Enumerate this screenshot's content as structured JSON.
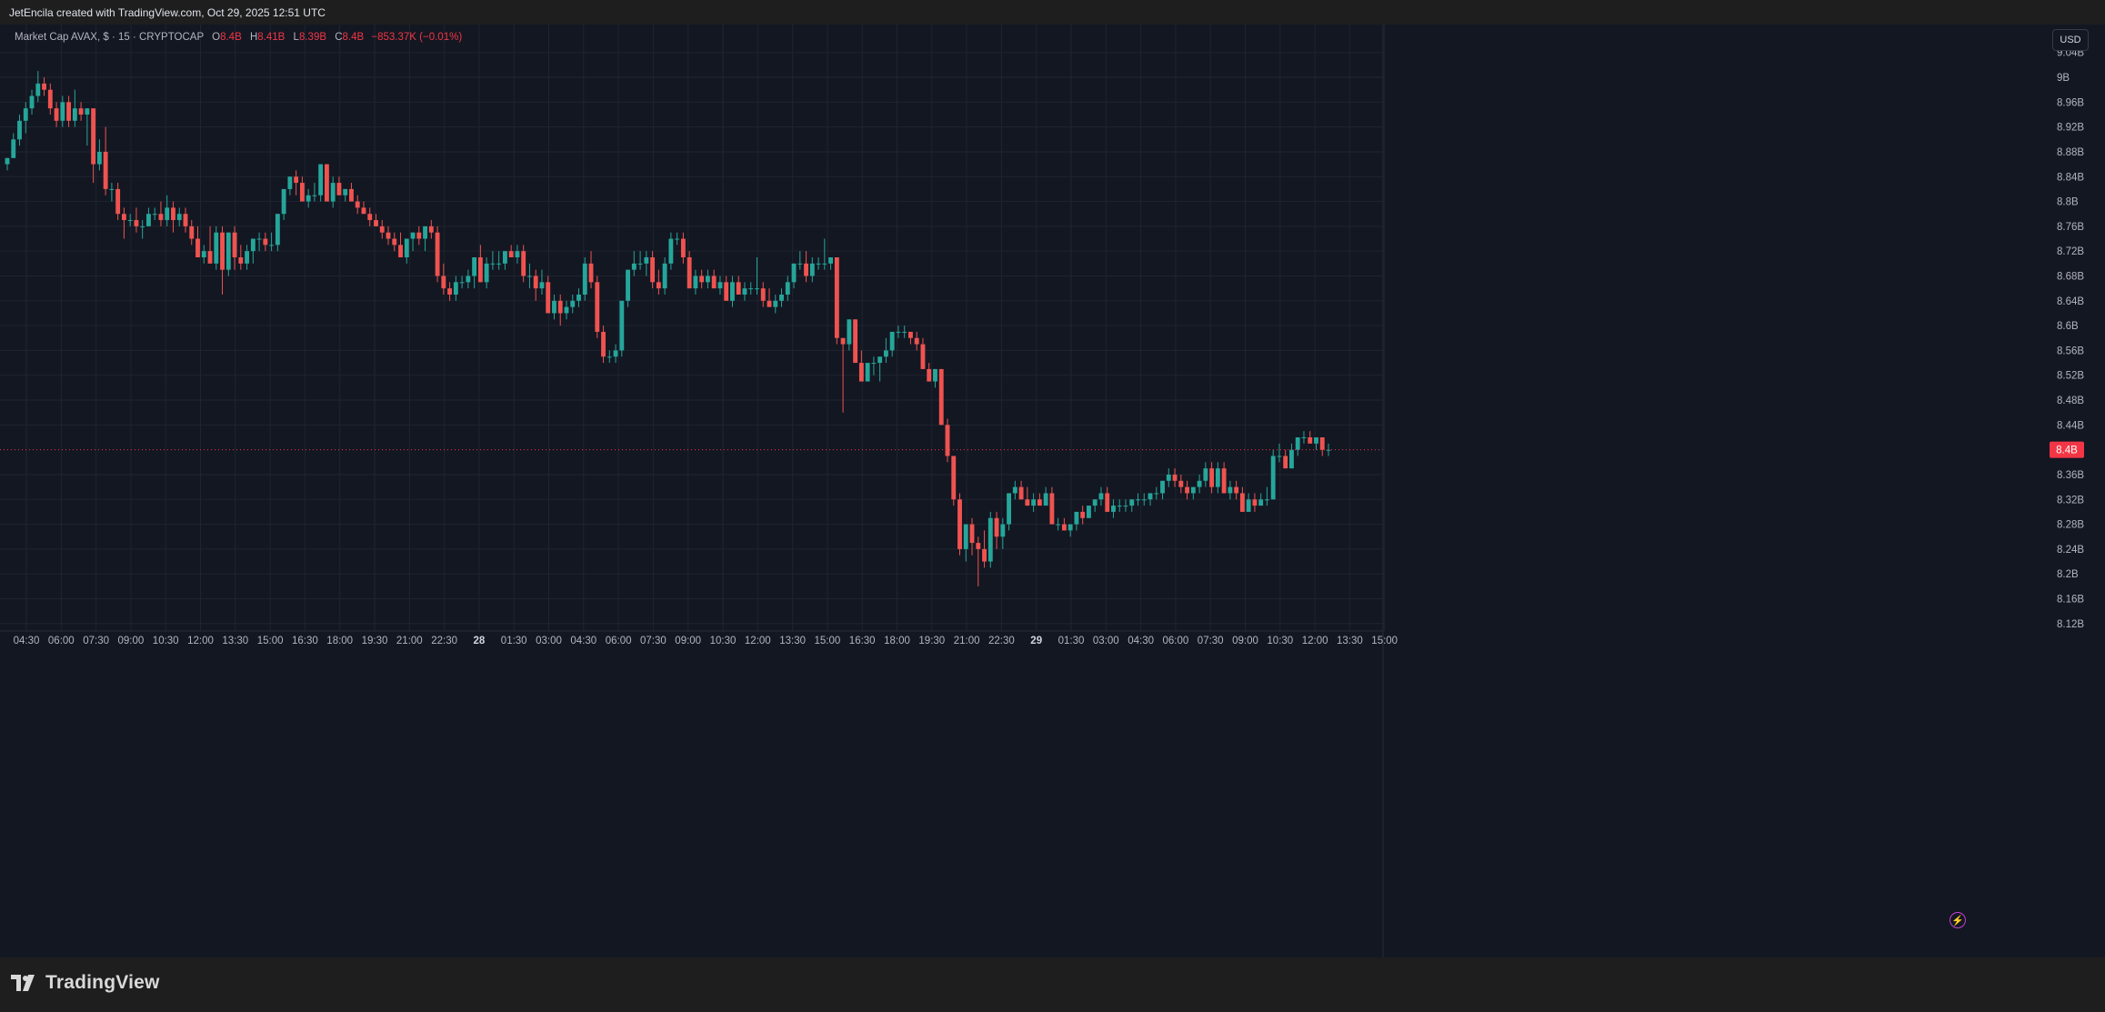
{
  "header": {
    "attribution": "JetEncila created with TradingView.com, Oct 29, 2025 12:51 UTC"
  },
  "legend": {
    "title": "Market Cap AVAX, $ · 15 · CRYPTOCAP",
    "o_label": "O",
    "o_value": "8.4B",
    "h_label": "H",
    "h_value": "8.41B",
    "l_label": "L",
    "l_value": "8.39B",
    "c_label": "C",
    "c_value": "8.4B",
    "change": "−853.37K (−0.01%)"
  },
  "currency_button": "USD",
  "brand": {
    "name": "TradingView"
  },
  "colors": {
    "up": "#26a69a",
    "down": "#ef5350",
    "background": "#131722",
    "grid": "#1f2430",
    "price_line": "#f23645"
  },
  "icons": [
    "tradingview-logo-icon",
    "lightning-icon"
  ],
  "chart_data": {
    "type": "candlestick",
    "symbol": "Market Cap AVAX",
    "interval": "15",
    "y_tick_labels": [
      "9.04B",
      "9B",
      "8.96B",
      "8.92B",
      "8.88B",
      "8.84B",
      "8.8B",
      "8.76B",
      "8.72B",
      "8.68B",
      "8.64B",
      "8.6B",
      "8.56B",
      "8.52B",
      "8.48B",
      "8.44B",
      "8.36B",
      "8.32B",
      "8.28B",
      "8.24B",
      "8.2B",
      "8.16B",
      "8.12B"
    ],
    "y_tick_values": [
      9.04,
      9.0,
      8.96,
      8.92,
      8.88,
      8.84,
      8.8,
      8.76,
      8.72,
      8.68,
      8.64,
      8.6,
      8.56,
      8.52,
      8.48,
      8.44,
      8.36,
      8.32,
      8.28,
      8.24,
      8.2,
      8.16,
      8.12
    ],
    "ylim": [
      8.108,
      9.085
    ],
    "x_tick_labels": [
      "04:30",
      "06:00",
      "07:30",
      "09:00",
      "10:30",
      "12:00",
      "13:30",
      "15:00",
      "16:30",
      "18:00",
      "19:30",
      "21:00",
      "22:30",
      "28",
      "01:30",
      "03:00",
      "04:30",
      "06:00",
      "07:30",
      "09:00",
      "10:30",
      "12:00",
      "13:30",
      "15:00",
      "16:30",
      "18:00",
      "19:30",
      "21:00",
      "22:30",
      "29",
      "01:30",
      "03:00",
      "04:30",
      "06:00",
      "07:30",
      "09:00",
      "10:30",
      "12:00",
      "13:30",
      "15:00"
    ],
    "current_price": 8.4,
    "current_price_label": "8.4B",
    "ohlc": [
      [
        8.86,
        8.87,
        8.85,
        8.87
      ],
      [
        8.87,
        8.91,
        8.87,
        8.9
      ],
      [
        8.9,
        8.94,
        8.89,
        8.93
      ],
      [
        8.93,
        8.96,
        8.91,
        8.95
      ],
      [
        8.95,
        8.98,
        8.94,
        8.97
      ],
      [
        8.97,
        9.01,
        8.96,
        8.99
      ],
      [
        8.99,
        9.0,
        8.97,
        8.98
      ],
      [
        8.98,
        8.99,
        8.94,
        8.95
      ],
      [
        8.95,
        8.96,
        8.92,
        8.93
      ],
      [
        8.93,
        8.97,
        8.92,
        8.96
      ],
      [
        8.96,
        8.97,
        8.92,
        8.93
      ],
      [
        8.93,
        8.98,
        8.92,
        8.95
      ],
      [
        8.95,
        8.96,
        8.93,
        8.94
      ],
      [
        8.94,
        8.95,
        8.89,
        8.95
      ],
      [
        8.95,
        8.95,
        8.83,
        8.86
      ],
      [
        8.86,
        8.9,
        8.85,
        8.88
      ],
      [
        8.88,
        8.92,
        8.81,
        8.82
      ],
      [
        8.82,
        8.83,
        8.8,
        8.82
      ],
      [
        8.82,
        8.83,
        8.77,
        8.78
      ],
      [
        8.78,
        8.79,
        8.74,
        8.77
      ],
      [
        8.77,
        8.78,
        8.76,
        8.77
      ],
      [
        8.77,
        8.79,
        8.75,
        8.76
      ],
      [
        8.76,
        8.77,
        8.74,
        8.76
      ],
      [
        8.76,
        8.79,
        8.76,
        8.78
      ],
      [
        8.78,
        8.79,
        8.77,
        8.78
      ],
      [
        8.78,
        8.8,
        8.76,
        8.77
      ],
      [
        8.77,
        8.81,
        8.76,
        8.79
      ],
      [
        8.79,
        8.8,
        8.75,
        8.77
      ],
      [
        8.77,
        8.79,
        8.76,
        8.78
      ],
      [
        8.78,
        8.79,
        8.75,
        8.76
      ],
      [
        8.76,
        8.77,
        8.73,
        8.74
      ],
      [
        8.74,
        8.76,
        8.71,
        8.71
      ],
      [
        8.71,
        8.73,
        8.7,
        8.72
      ],
      [
        8.72,
        8.76,
        8.7,
        8.7
      ],
      [
        8.7,
        8.76,
        8.69,
        8.75
      ],
      [
        8.75,
        8.76,
        8.65,
        8.69
      ],
      [
        8.69,
        8.75,
        8.68,
        8.75
      ],
      [
        8.75,
        8.76,
        8.69,
        8.71
      ],
      [
        8.71,
        8.73,
        8.69,
        8.7
      ],
      [
        8.7,
        8.73,
        8.69,
        8.72
      ],
      [
        8.72,
        8.74,
        8.7,
        8.74
      ],
      [
        8.74,
        8.75,
        8.72,
        8.74
      ],
      [
        8.74,
        8.75,
        8.72,
        8.73
      ],
      [
        8.73,
        8.75,
        8.72,
        8.73
      ],
      [
        8.73,
        8.78,
        8.72,
        8.78
      ],
      [
        8.78,
        8.82,
        8.77,
        8.82
      ],
      [
        8.82,
        8.84,
        8.81,
        8.84
      ],
      [
        8.84,
        8.85,
        8.81,
        8.83
      ],
      [
        8.83,
        8.84,
        8.8,
        8.8
      ],
      [
        8.8,
        8.82,
        8.79,
        8.81
      ],
      [
        8.81,
        8.83,
        8.8,
        8.81
      ],
      [
        8.81,
        8.86,
        8.8,
        8.86
      ],
      [
        8.86,
        8.86,
        8.8,
        8.8
      ],
      [
        8.8,
        8.84,
        8.79,
        8.83
      ],
      [
        8.83,
        8.84,
        8.81,
        8.81
      ],
      [
        8.81,
        8.82,
        8.8,
        8.82
      ],
      [
        8.82,
        8.83,
        8.8,
        8.8
      ],
      [
        8.8,
        8.81,
        8.78,
        8.79
      ],
      [
        8.79,
        8.8,
        8.78,
        8.78
      ],
      [
        8.78,
        8.79,
        8.76,
        8.77
      ],
      [
        8.77,
        8.78,
        8.76,
        8.76
      ],
      [
        8.76,
        8.77,
        8.74,
        8.75
      ],
      [
        8.75,
        8.76,
        8.73,
        8.74
      ],
      [
        8.74,
        8.75,
        8.72,
        8.73
      ],
      [
        8.73,
        8.75,
        8.71,
        8.71
      ],
      [
        8.71,
        8.74,
        8.7,
        8.74
      ],
      [
        8.74,
        8.75,
        8.72,
        8.75
      ],
      [
        8.75,
        8.76,
        8.73,
        8.74
      ],
      [
        8.74,
        8.76,
        8.72,
        8.76
      ],
      [
        8.76,
        8.77,
        8.74,
        8.75
      ],
      [
        8.75,
        8.76,
        8.67,
        8.68
      ],
      [
        8.68,
        8.7,
        8.65,
        8.66
      ],
      [
        8.66,
        8.67,
        8.64,
        8.65
      ],
      [
        8.65,
        8.68,
        8.64,
        8.67
      ],
      [
        8.67,
        8.68,
        8.66,
        8.67
      ],
      [
        8.67,
        8.69,
        8.66,
        8.68
      ],
      [
        8.68,
        8.71,
        8.66,
        8.71
      ],
      [
        8.71,
        8.73,
        8.67,
        8.67
      ],
      [
        8.67,
        8.71,
        8.66,
        8.7
      ],
      [
        8.7,
        8.72,
        8.69,
        8.7
      ],
      [
        8.7,
        8.72,
        8.69,
        8.7
      ],
      [
        8.7,
        8.72,
        8.69,
        8.72
      ],
      [
        8.72,
        8.73,
        8.71,
        8.71
      ],
      [
        8.71,
        8.73,
        8.7,
        8.72
      ],
      [
        8.72,
        8.73,
        8.67,
        8.68
      ],
      [
        8.68,
        8.7,
        8.66,
        8.68
      ],
      [
        8.68,
        8.69,
        8.64,
        8.66
      ],
      [
        8.66,
        8.69,
        8.65,
        8.67
      ],
      [
        8.67,
        8.68,
        8.62,
        8.62
      ],
      [
        8.62,
        8.65,
        8.61,
        8.64
      ],
      [
        8.64,
        8.65,
        8.6,
        8.62
      ],
      [
        8.62,
        8.64,
        8.61,
        8.63
      ],
      [
        8.63,
        8.65,
        8.62,
        8.64
      ],
      [
        8.64,
        8.66,
        8.63,
        8.65
      ],
      [
        8.65,
        8.71,
        8.64,
        8.7
      ],
      [
        8.7,
        8.72,
        8.66,
        8.67
      ],
      [
        8.67,
        8.68,
        8.58,
        8.59
      ],
      [
        8.59,
        8.6,
        8.54,
        8.55
      ],
      [
        8.55,
        8.56,
        8.54,
        8.55
      ],
      [
        8.55,
        8.57,
        8.54,
        8.56
      ],
      [
        8.56,
        8.64,
        8.55,
        8.64
      ],
      [
        8.64,
        8.69,
        8.63,
        8.69
      ],
      [
        8.69,
        8.72,
        8.68,
        8.7
      ],
      [
        8.7,
        8.72,
        8.69,
        8.7
      ],
      [
        8.7,
        8.72,
        8.68,
        8.71
      ],
      [
        8.71,
        8.72,
        8.66,
        8.67
      ],
      [
        8.67,
        8.69,
        8.65,
        8.66
      ],
      [
        8.66,
        8.71,
        8.65,
        8.7
      ],
      [
        8.7,
        8.75,
        8.69,
        8.74
      ],
      [
        8.74,
        8.75,
        8.73,
        8.74
      ],
      [
        8.74,
        8.75,
        8.7,
        8.71
      ],
      [
        8.71,
        8.72,
        8.66,
        8.66
      ],
      [
        8.66,
        8.69,
        8.65,
        8.68
      ],
      [
        8.68,
        8.69,
        8.66,
        8.67
      ],
      [
        8.67,
        8.69,
        8.66,
        8.68
      ],
      [
        8.68,
        8.69,
        8.66,
        8.66
      ],
      [
        8.66,
        8.68,
        8.65,
        8.67
      ],
      [
        8.67,
        8.68,
        8.64,
        8.64
      ],
      [
        8.64,
        8.68,
        8.63,
        8.67
      ],
      [
        8.67,
        8.68,
        8.65,
        8.65
      ],
      [
        8.65,
        8.67,
        8.64,
        8.66
      ],
      [
        8.66,
        8.67,
        8.65,
        8.66
      ],
      [
        8.66,
        8.71,
        8.65,
        8.66
      ],
      [
        8.66,
        8.67,
        8.63,
        8.64
      ],
      [
        8.64,
        8.66,
        8.63,
        8.63
      ],
      [
        8.63,
        8.65,
        8.62,
        8.64
      ],
      [
        8.64,
        8.66,
        8.63,
        8.65
      ],
      [
        8.65,
        8.68,
        8.64,
        8.67
      ],
      [
        8.67,
        8.7,
        8.66,
        8.7
      ],
      [
        8.7,
        8.72,
        8.69,
        8.7
      ],
      [
        8.7,
        8.72,
        8.67,
        8.68
      ],
      [
        8.68,
        8.71,
        8.67,
        8.7
      ],
      [
        8.7,
        8.71,
        8.69,
        8.7
      ],
      [
        8.7,
        8.74,
        8.69,
        8.7
      ],
      [
        8.7,
        8.71,
        8.69,
        8.71
      ],
      [
        8.71,
        8.71,
        8.57,
        8.58
      ],
      [
        8.58,
        8.58,
        8.46,
        8.57
      ],
      [
        8.57,
        8.61,
        8.56,
        8.61
      ],
      [
        8.61,
        8.61,
        8.54,
        8.54
      ],
      [
        8.54,
        8.56,
        8.51,
        8.51
      ],
      [
        8.51,
        8.54,
        8.51,
        8.54
      ],
      [
        8.54,
        8.55,
        8.52,
        8.54
      ],
      [
        8.54,
        8.55,
        8.51,
        8.55
      ],
      [
        8.55,
        8.58,
        8.54,
        8.56
      ],
      [
        8.56,
        8.59,
        8.55,
        8.59
      ],
      [
        8.59,
        8.6,
        8.58,
        8.59
      ],
      [
        8.59,
        8.6,
        8.58,
        8.59
      ],
      [
        8.59,
        8.59,
        8.57,
        8.58
      ],
      [
        8.58,
        8.59,
        8.56,
        8.57
      ],
      [
        8.57,
        8.58,
        8.53,
        8.53
      ],
      [
        8.53,
        8.54,
        8.51,
        8.51
      ],
      [
        8.51,
        8.53,
        8.5,
        8.53
      ],
      [
        8.53,
        8.53,
        8.44,
        8.44
      ],
      [
        8.44,
        8.45,
        8.38,
        8.39
      ],
      [
        8.39,
        8.39,
        8.31,
        8.32
      ],
      [
        8.32,
        8.33,
        8.23,
        8.24
      ],
      [
        8.24,
        8.28,
        8.22,
        8.28
      ],
      [
        8.28,
        8.29,
        8.23,
        8.25
      ],
      [
        8.25,
        8.26,
        8.18,
        8.24
      ],
      [
        8.24,
        8.27,
        8.21,
        8.22
      ],
      [
        8.22,
        8.3,
        8.21,
        8.29
      ],
      [
        8.29,
        8.3,
        8.24,
        8.26
      ],
      [
        8.26,
        8.29,
        8.24,
        8.28
      ],
      [
        8.28,
        8.33,
        8.27,
        8.33
      ],
      [
        8.33,
        8.35,
        8.32,
        8.34
      ],
      [
        8.34,
        8.35,
        8.32,
        8.32
      ],
      [
        8.32,
        8.34,
        8.31,
        8.31
      ],
      [
        8.31,
        8.33,
        8.3,
        8.32
      ],
      [
        8.32,
        8.33,
        8.31,
        8.31
      ],
      [
        8.31,
        8.34,
        8.31,
        8.33
      ],
      [
        8.33,
        8.34,
        8.28,
        8.28
      ],
      [
        8.28,
        8.29,
        8.27,
        8.28
      ],
      [
        8.28,
        8.29,
        8.27,
        8.27
      ],
      [
        8.27,
        8.28,
        8.26,
        8.28
      ],
      [
        8.28,
        8.3,
        8.27,
        8.3
      ],
      [
        8.3,
        8.31,
        8.28,
        8.29
      ],
      [
        8.29,
        8.31,
        8.29,
        8.31
      ],
      [
        8.31,
        8.32,
        8.3,
        8.32
      ],
      [
        8.32,
        8.34,
        8.31,
        8.33
      ],
      [
        8.33,
        8.34,
        8.3,
        8.3
      ],
      [
        8.3,
        8.32,
        8.29,
        8.31
      ],
      [
        8.31,
        8.32,
        8.3,
        8.31
      ],
      [
        8.31,
        8.32,
        8.3,
        8.31
      ],
      [
        8.31,
        8.32,
        8.3,
        8.32
      ],
      [
        8.32,
        8.33,
        8.31,
        8.32
      ],
      [
        8.32,
        8.33,
        8.31,
        8.32
      ],
      [
        8.32,
        8.33,
        8.31,
        8.33
      ],
      [
        8.33,
        8.34,
        8.32,
        8.33
      ],
      [
        8.33,
        8.35,
        8.32,
        8.35
      ],
      [
        8.35,
        8.37,
        8.34,
        8.36
      ],
      [
        8.36,
        8.37,
        8.34,
        8.35
      ],
      [
        8.35,
        8.36,
        8.33,
        8.34
      ],
      [
        8.34,
        8.35,
        8.32,
        8.33
      ],
      [
        8.33,
        8.34,
        8.32,
        8.34
      ],
      [
        8.34,
        8.36,
        8.33,
        8.35
      ],
      [
        8.35,
        8.38,
        8.34,
        8.37
      ],
      [
        8.37,
        8.38,
        8.33,
        8.34
      ],
      [
        8.34,
        8.38,
        8.33,
        8.37
      ],
      [
        8.37,
        8.38,
        8.33,
        8.33
      ],
      [
        8.33,
        8.35,
        8.32,
        8.34
      ],
      [
        8.34,
        8.35,
        8.32,
        8.33
      ],
      [
        8.33,
        8.34,
        8.3,
        8.3
      ],
      [
        8.3,
        8.33,
        8.3,
        8.32
      ],
      [
        8.32,
        8.33,
        8.3,
        8.31
      ],
      [
        8.31,
        8.33,
        8.31,
        8.32
      ],
      [
        8.32,
        8.34,
        8.31,
        8.32
      ],
      [
        8.32,
        8.4,
        8.32,
        8.39
      ],
      [
        8.39,
        8.41,
        8.38,
        8.39
      ],
      [
        8.39,
        8.4,
        8.37,
        8.37
      ],
      [
        8.37,
        8.41,
        8.37,
        8.4
      ],
      [
        8.4,
        8.42,
        8.39,
        8.42
      ],
      [
        8.42,
        8.43,
        8.41,
        8.42
      ],
      [
        8.42,
        8.43,
        8.41,
        8.41
      ],
      [
        8.41,
        8.42,
        8.4,
        8.42
      ],
      [
        8.42,
        8.42,
        8.39,
        8.4
      ],
      [
        8.4,
        8.41,
        8.39,
        8.4
      ]
    ]
  }
}
